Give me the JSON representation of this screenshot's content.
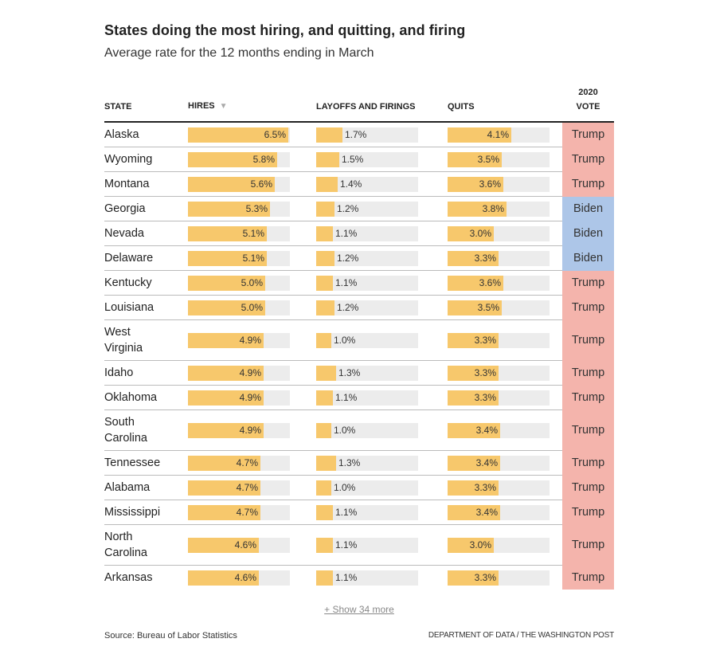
{
  "chart_data": {
    "type": "table",
    "title": "States doing the most hiring, and quitting, and firing",
    "subtitle": "Average rate for the 12 months ending in March",
    "columns": [
      "STATE",
      "HIRES",
      "LAYOFFS AND FIRINGS",
      "QUITS",
      "2020 VOTE"
    ],
    "sorted_by": "HIRES",
    "sort_direction": "descending",
    "bar_scale_max": 6.6,
    "rows": [
      {
        "state": "Alaska",
        "hires": 6.5,
        "layoffs": 1.7,
        "quits": 4.1,
        "vote": "Trump"
      },
      {
        "state": "Wyoming",
        "hires": 5.8,
        "layoffs": 1.5,
        "quits": 3.5,
        "vote": "Trump"
      },
      {
        "state": "Montana",
        "hires": 5.6,
        "layoffs": 1.4,
        "quits": 3.6,
        "vote": "Trump"
      },
      {
        "state": "Georgia",
        "hires": 5.3,
        "layoffs": 1.2,
        "quits": 3.8,
        "vote": "Biden"
      },
      {
        "state": "Nevada",
        "hires": 5.1,
        "layoffs": 1.1,
        "quits": 3.0,
        "vote": "Biden"
      },
      {
        "state": "Delaware",
        "hires": 5.1,
        "layoffs": 1.2,
        "quits": 3.3,
        "vote": "Biden"
      },
      {
        "state": "Kentucky",
        "hires": 5.0,
        "layoffs": 1.1,
        "quits": 3.6,
        "vote": "Trump"
      },
      {
        "state": "Louisiana",
        "hires": 5.0,
        "layoffs": 1.2,
        "quits": 3.5,
        "vote": "Trump"
      },
      {
        "state": "West Virginia",
        "hires": 4.9,
        "layoffs": 1.0,
        "quits": 3.3,
        "vote": "Trump"
      },
      {
        "state": "Idaho",
        "hires": 4.9,
        "layoffs": 1.3,
        "quits": 3.3,
        "vote": "Trump"
      },
      {
        "state": "Oklahoma",
        "hires": 4.9,
        "layoffs": 1.1,
        "quits": 3.3,
        "vote": "Trump"
      },
      {
        "state": "South Carolina",
        "hires": 4.9,
        "layoffs": 1.0,
        "quits": 3.4,
        "vote": "Trump"
      },
      {
        "state": "Tennessee",
        "hires": 4.7,
        "layoffs": 1.3,
        "quits": 3.4,
        "vote": "Trump"
      },
      {
        "state": "Alabama",
        "hires": 4.7,
        "layoffs": 1.0,
        "quits": 3.3,
        "vote": "Trump"
      },
      {
        "state": "Mississippi",
        "hires": 4.7,
        "layoffs": 1.1,
        "quits": 3.4,
        "vote": "Trump"
      },
      {
        "state": "North Carolina",
        "hires": 4.6,
        "layoffs": 1.1,
        "quits": 3.0,
        "vote": "Trump"
      },
      {
        "state": "Arkansas",
        "hires": 4.6,
        "layoffs": 1.1,
        "quits": 3.3,
        "vote": "Trump"
      }
    ]
  },
  "header": {
    "title": "States doing the most hiring, and quitting, and firing",
    "subtitle": "Average rate for the 12 months ending in March"
  },
  "columns": {
    "state": "STATE",
    "hires": "HIRES",
    "sort_icon": "▼",
    "layoffs": "LAYOFFS AND FIRINGS",
    "quits": "QUITS",
    "vote_line1": "2020",
    "vote_line2": "VOTE"
  },
  "colors": {
    "bar": "#f7c86c",
    "track": "#ececec",
    "trump": "#f4b4ac",
    "biden": "#adc6e8"
  },
  "show_more": "+ Show 34 more",
  "footer": {
    "source": "Source: Bureau of Labor Statistics",
    "credit": "DEPARTMENT OF DATA / THE WASHINGTON POST"
  }
}
